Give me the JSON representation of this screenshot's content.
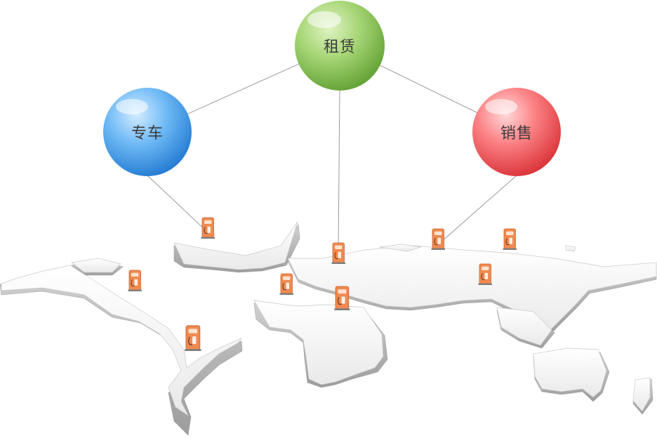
{
  "nodes": [
    {
      "id": "rental",
      "label": "租赁",
      "color": "#8cc65a"
    },
    {
      "id": "special-car",
      "label": "专车",
      "color": "#4aa2ef"
    },
    {
      "id": "sales",
      "label": "销售",
      "color": "#f35a5e"
    }
  ],
  "icons": {
    "station": "charging-station-icon",
    "map": "world-map-3d"
  },
  "colors": {
    "station_body": "#f08a50",
    "station_dark": "#d56a32",
    "map_top": "#f4f4f4",
    "map_side": "#b9b9b9",
    "connector": "#9a9a9a"
  }
}
